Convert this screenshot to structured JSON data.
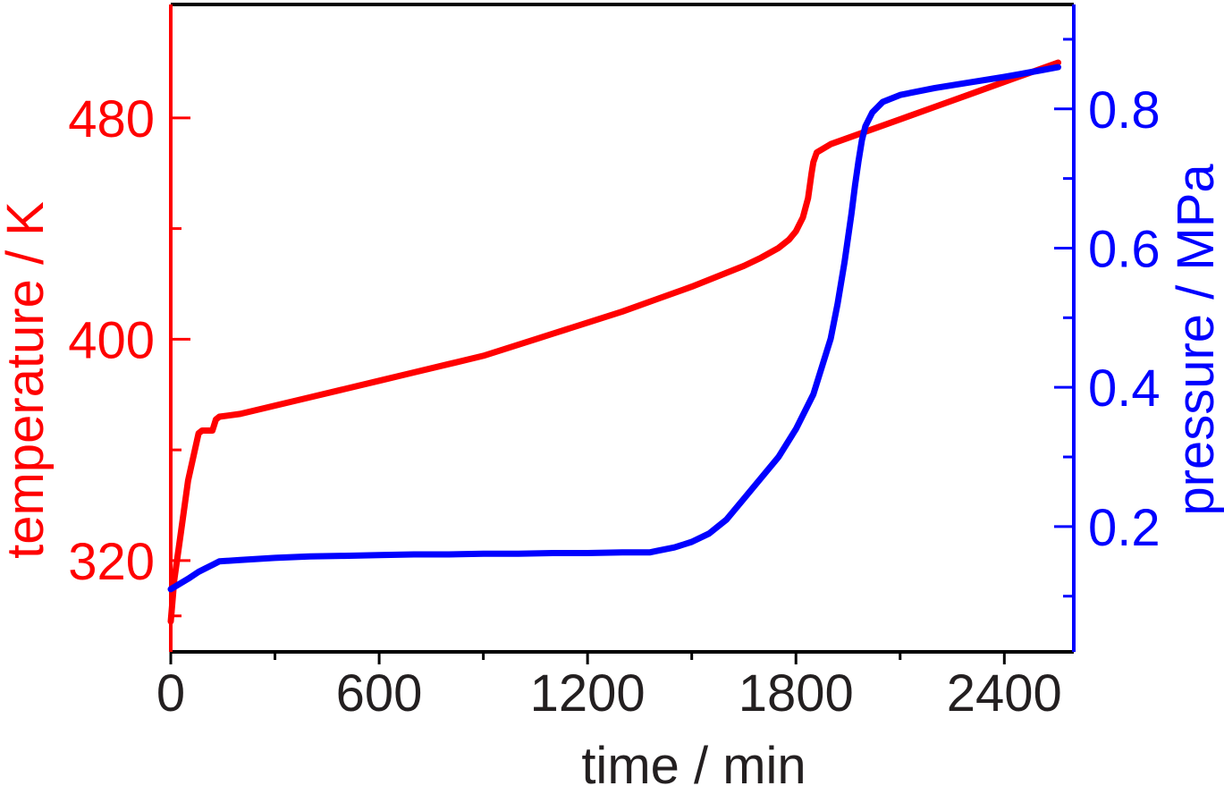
{
  "chart_data": {
    "type": "line",
    "xlabel": "time / min",
    "ylabel_left": "temperature / K",
    "ylabel_right": "pressure / MPa",
    "xlim": [
      0,
      2600
    ],
    "ylim_left": [
      287,
      521
    ],
    "ylim_right": [
      0.02,
      0.95
    ],
    "x_ticks": [
      0,
      600,
      1200,
      1800,
      2400
    ],
    "x_minor_ticks": [
      300,
      900,
      1500,
      2100
    ],
    "y_left_ticks": [
      320,
      400,
      480
    ],
    "y_left_minor_ticks": [
      300,
      360,
      440
    ],
    "y_right_ticks": [
      0.2,
      0.4,
      0.6,
      0.8
    ],
    "y_right_minor_ticks": [
      0.1,
      0.3,
      0.5,
      0.7,
      0.9
    ],
    "grid": false,
    "colors": {
      "temperature": "#ff0000",
      "pressure": "#0000ff",
      "axes": "#000000",
      "x_tick_labels": "#231f20"
    },
    "series": [
      {
        "axis": "left",
        "color": "#ff0000",
        "x": [
          0,
          10,
          30,
          50,
          80,
          90,
          100,
          115,
          120,
          130,
          140,
          200,
          300,
          400,
          500,
          600,
          700,
          800,
          900,
          1000,
          1100,
          1200,
          1300,
          1400,
          1500,
          1600,
          1650,
          1700,
          1750,
          1780,
          1800,
          1820,
          1835,
          1845,
          1850,
          1860,
          1880,
          1900,
          2000,
          2100,
          2200,
          2300,
          2400,
          2500,
          2555
        ],
        "values": [
          298,
          313,
          331,
          349,
          366,
          367,
          367,
          367,
          367,
          371,
          372,
          373,
          376,
          379,
          382,
          385,
          388,
          391,
          394,
          398,
          402,
          406,
          410,
          414.5,
          419,
          424,
          426.5,
          429.5,
          433,
          436,
          439,
          444,
          451,
          460,
          464,
          467.5,
          469,
          470.5,
          475,
          479.5,
          484,
          488.5,
          493,
          497.5,
          500
        ]
      },
      {
        "axis": "right",
        "color": "#0000ff",
        "x": [
          0,
          50,
          80,
          100,
          120,
          140,
          200,
          300,
          400,
          500,
          600,
          700,
          800,
          900,
          1000,
          1100,
          1200,
          1300,
          1380,
          1400,
          1450,
          1500,
          1550,
          1600,
          1650,
          1700,
          1750,
          1800,
          1850,
          1900,
          1920,
          1940,
          1950,
          1960,
          1970,
          1980,
          1990,
          2000,
          2020,
          2050,
          2100,
          2200,
          2300,
          2400,
          2500,
          2555
        ],
        "values": [
          0.11,
          0.125,
          0.135,
          0.14,
          0.145,
          0.15,
          0.152,
          0.155,
          0.157,
          0.158,
          0.159,
          0.16,
          0.16,
          0.161,
          0.161,
          0.162,
          0.162,
          0.163,
          0.163,
          0.165,
          0.17,
          0.178,
          0.19,
          0.21,
          0.24,
          0.27,
          0.3,
          0.34,
          0.39,
          0.47,
          0.52,
          0.58,
          0.615,
          0.65,
          0.69,
          0.725,
          0.755,
          0.775,
          0.795,
          0.81,
          0.82,
          0.83,
          0.838,
          0.846,
          0.855,
          0.86
        ]
      }
    ]
  }
}
